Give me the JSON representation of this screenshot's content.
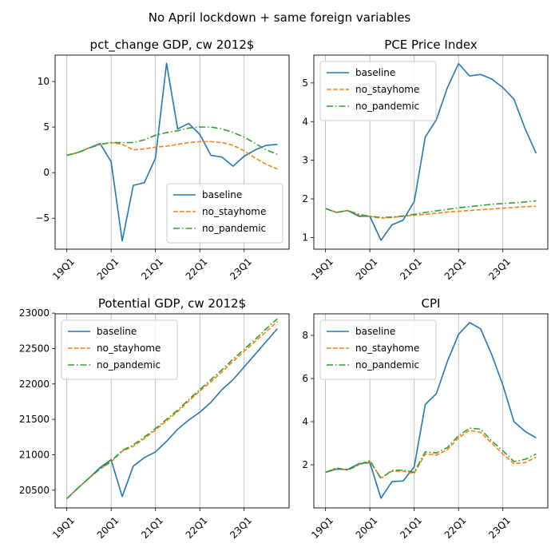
{
  "figure": {
    "suptitle": "No April lockdown + same foreign variables"
  },
  "colors": {
    "baseline": "#1f77b4",
    "no_stayhome": "#ff7f0e",
    "no_pandemic": "#2ca02c",
    "grid": "#b0b0b0"
  },
  "chart_data": [
    {
      "type": "line",
      "title": "pct_change GDP, cw 2012$",
      "xlabel": "",
      "ylabel": "",
      "categories": [
        "19Q1",
        "19Q2",
        "19Q3",
        "19Q4",
        "20Q1",
        "20Q2",
        "20Q3",
        "20Q4",
        "21Q1",
        "21Q2",
        "21Q3",
        "21Q4",
        "22Q1",
        "22Q2",
        "22Q3",
        "22Q4",
        "23Q1",
        "23Q2",
        "23Q3",
        "23Q4"
      ],
      "xticks": [
        "19Q1",
        "20Q1",
        "21Q1",
        "22Q1",
        "23Q1"
      ],
      "ylim": [
        -8.4,
        12.9
      ],
      "yticks": [
        -5,
        0,
        5,
        10
      ],
      "grid": "x",
      "legend": "lower-right",
      "series": [
        {
          "name": "baseline",
          "style": "solid",
          "values": [
            1.9,
            2.2,
            2.7,
            3.2,
            1.2,
            -7.5,
            -1.4,
            -1.1,
            1.6,
            12.0,
            4.8,
            5.4,
            4.2,
            1.9,
            1.7,
            0.7,
            1.8,
            2.5,
            3.0,
            3.1
          ]
        },
        {
          "name": "no_stayhome",
          "style": "dashed",
          "values": [
            1.9,
            2.2,
            2.7,
            3.1,
            3.3,
            3.1,
            2.5,
            2.6,
            2.8,
            2.9,
            3.1,
            3.3,
            3.4,
            3.4,
            3.3,
            3.0,
            2.4,
            1.6,
            0.9,
            0.4
          ]
        },
        {
          "name": "no_pandemic",
          "style": "dashdot",
          "values": [
            1.9,
            2.2,
            2.7,
            3.1,
            3.3,
            3.3,
            3.3,
            3.6,
            4.1,
            4.4,
            4.6,
            4.9,
            5.0,
            5.0,
            4.8,
            4.4,
            3.9,
            3.2,
            2.5,
            2.0
          ]
        }
      ]
    },
    {
      "type": "line",
      "title": "PCE Price Index",
      "xlabel": "",
      "ylabel": "",
      "categories": [
        "19Q1",
        "19Q2",
        "19Q3",
        "19Q4",
        "20Q1",
        "20Q2",
        "20Q3",
        "20Q4",
        "21Q1",
        "21Q2",
        "21Q3",
        "21Q4",
        "22Q1",
        "22Q2",
        "22Q3",
        "22Q4",
        "23Q1",
        "23Q2",
        "23Q3",
        "23Q4"
      ],
      "xticks": [
        "19Q1",
        "20Q1",
        "21Q1",
        "22Q1",
        "23Q1"
      ],
      "ylim": [
        0.7,
        5.72
      ],
      "yticks": [
        1,
        2,
        3,
        4,
        5
      ],
      "grid": "x",
      "legend": "upper-left",
      "series": [
        {
          "name": "baseline",
          "style": "solid",
          "values": [
            1.75,
            1.65,
            1.7,
            1.55,
            1.55,
            0.93,
            1.33,
            1.45,
            1.93,
            3.6,
            4.05,
            4.88,
            5.5,
            5.18,
            5.22,
            5.1,
            4.88,
            4.58,
            3.82,
            3.18
          ]
        },
        {
          "name": "no_stayhome",
          "style": "dashed",
          "values": [
            1.75,
            1.65,
            1.7,
            1.58,
            1.55,
            1.5,
            1.52,
            1.55,
            1.58,
            1.6,
            1.63,
            1.66,
            1.68,
            1.7,
            1.72,
            1.74,
            1.76,
            1.78,
            1.8,
            1.81
          ]
        },
        {
          "name": "no_pandemic",
          "style": "dashdot",
          "values": [
            1.75,
            1.65,
            1.7,
            1.6,
            1.55,
            1.52,
            1.53,
            1.56,
            1.6,
            1.65,
            1.69,
            1.73,
            1.77,
            1.8,
            1.83,
            1.86,
            1.88,
            1.9,
            1.92,
            1.95
          ]
        }
      ]
    },
    {
      "type": "line",
      "title": "Potential GDP, cw 2012$",
      "xlabel": "",
      "ylabel": "",
      "categories": [
        "19Q1",
        "19Q2",
        "19Q3",
        "19Q4",
        "20Q1",
        "20Q2",
        "20Q3",
        "20Q4",
        "21Q1",
        "21Q2",
        "21Q3",
        "21Q4",
        "22Q1",
        "22Q2",
        "22Q3",
        "22Q4",
        "23Q1",
        "23Q2",
        "23Q3",
        "23Q4"
      ],
      "xticks": [
        "19Q1",
        "20Q1",
        "21Q1",
        "22Q1",
        "23Q1"
      ],
      "ylim": [
        20250,
        22990
      ],
      "yticks": [
        20500,
        21000,
        21500,
        22000,
        22500,
        23000
      ],
      "grid": "x",
      "legend": "upper-left",
      "series": [
        {
          "name": "baseline",
          "style": "solid",
          "values": [
            20380,
            20530,
            20670,
            20820,
            20930,
            20410,
            20840,
            20960,
            21040,
            21190,
            21360,
            21490,
            21600,
            21740,
            21920,
            22060,
            22240,
            22420,
            22600,
            22780
          ]
        },
        {
          "name": "no_stayhome",
          "style": "dashed",
          "values": [
            20380,
            20530,
            20670,
            20800,
            20900,
            21050,
            21120,
            21230,
            21350,
            21480,
            21610,
            21760,
            21900,
            22030,
            22170,
            22320,
            22460,
            22600,
            22740,
            22880
          ]
        },
        {
          "name": "no_pandemic",
          "style": "dashdot",
          "values": [
            20380,
            20530,
            20670,
            20800,
            20910,
            21060,
            21140,
            21250,
            21370,
            21500,
            21630,
            21780,
            21920,
            22060,
            22200,
            22350,
            22490,
            22630,
            22780,
            22920
          ]
        }
      ]
    },
    {
      "type": "line",
      "title": "CPI",
      "xlabel": "",
      "ylabel": "",
      "categories": [
        "19Q1",
        "19Q2",
        "19Q3",
        "19Q4",
        "20Q1",
        "20Q2",
        "20Q3",
        "20Q4",
        "21Q1",
        "21Q2",
        "21Q3",
        "21Q4",
        "22Q1",
        "22Q2",
        "22Q3",
        "22Q4",
        "23Q1",
        "23Q2",
        "23Q3",
        "23Q4"
      ],
      "xticks": [
        "19Q1",
        "20Q1",
        "21Q1",
        "22Q1",
        "23Q1"
      ],
      "ylim": [
        0.0,
        9.0
      ],
      "yticks": [
        2,
        4,
        6,
        8
      ],
      "grid": "x",
      "legend": "upper-left",
      "series": [
        {
          "name": "baseline",
          "style": "solid",
          "values": [
            1.65,
            1.8,
            1.78,
            2.05,
            2.1,
            0.45,
            1.22,
            1.25,
            1.9,
            4.8,
            5.3,
            6.8,
            8.05,
            8.6,
            8.3,
            7.1,
            5.7,
            4.0,
            3.55,
            3.25
          ]
        },
        {
          "name": "no_stayhome",
          "style": "dashed",
          "values": [
            1.65,
            1.85,
            1.75,
            2.0,
            2.15,
            1.4,
            1.7,
            1.7,
            1.6,
            2.5,
            2.45,
            2.7,
            3.25,
            3.6,
            3.5,
            3.0,
            2.5,
            2.05,
            2.1,
            2.35
          ]
        },
        {
          "name": "no_pandemic",
          "style": "dashdot",
          "values": [
            1.65,
            1.85,
            1.75,
            2.0,
            2.2,
            1.35,
            1.75,
            1.75,
            1.65,
            2.6,
            2.55,
            2.8,
            3.35,
            3.7,
            3.65,
            3.1,
            2.65,
            2.15,
            2.25,
            2.5
          ]
        }
      ]
    }
  ]
}
